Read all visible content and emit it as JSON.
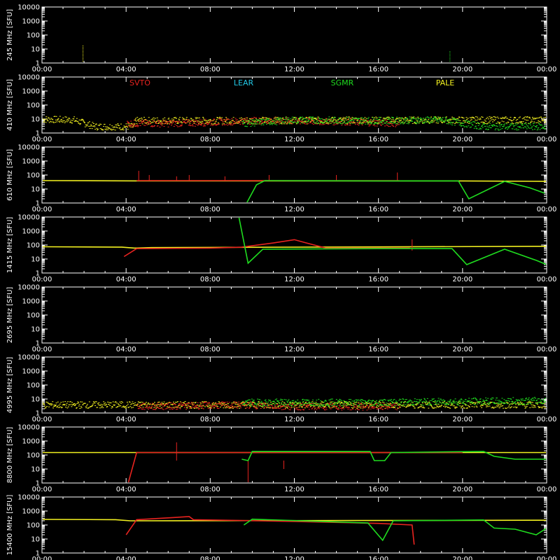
{
  "colors": {
    "background": "#000000",
    "axes": "#ffffff",
    "SVTO": "#e8231f",
    "LEAR": "#22c8e6",
    "SGMR": "#1fdc1f",
    "PALE": "#f2f020"
  },
  "chart_data": {
    "type": "line",
    "xlim": [
      "00:00",
      "24:00"
    ],
    "x_ticks": [
      "00:00",
      "04:00",
      "08:00",
      "12:00",
      "16:00",
      "20:00",
      "00:00"
    ],
    "y_scale": "log",
    "ylim": [
      1,
      10000
    ],
    "y_ticks": [
      "1",
      "10",
      "100",
      "1000",
      "10000"
    ],
    "legend": {
      "placement": "top of 410 MHz panel",
      "entries": [
        "SVTO",
        "LEAR",
        "SGMR",
        "PALE"
      ]
    },
    "panels": [
      {
        "ylabel": "245 MHz [SFU]",
        "series": [
          {
            "name": "PALE",
            "points": [
              [
                1.95,
                1
              ],
              [
                1.95,
                20
              ]
            ],
            "style": "spikes"
          },
          {
            "name": "SGMR",
            "points": [
              [
                19.4,
                1
              ],
              [
                19.4,
                8
              ]
            ],
            "style": "spikes"
          }
        ]
      },
      {
        "ylabel": "410 MHz [SFU]",
        "series": [
          {
            "name": "PALE",
            "points": [
              [
                0,
                10
              ],
              [
                1.5,
                9
              ],
              [
                2.5,
                3
              ],
              [
                4.4,
                3
              ],
              [
                4.4,
                8
              ],
              [
                24,
                9
              ]
            ],
            "style": "noisy"
          },
          {
            "name": "SVTO",
            "points": [
              [
                4,
                5
              ],
              [
                6,
                5
              ],
              [
                8,
                6
              ],
              [
                10,
                8
              ],
              [
                14,
                7
              ],
              [
                17,
                5
              ]
            ],
            "style": "noisy"
          },
          {
            "name": "SGMR",
            "points": [
              [
                9.5,
                5
              ],
              [
                12,
                9
              ],
              [
                16,
                8
              ],
              [
                19,
                9
              ],
              [
                21,
                3
              ],
              [
                24,
                3
              ]
            ],
            "style": "noisy"
          }
        ]
      },
      {
        "ylabel": "610 MHz [SFU]",
        "series": [
          {
            "name": "PALE",
            "points": [
              [
                0,
                40
              ],
              [
                4.5,
                38
              ],
              [
                4.5,
                38
              ],
              [
                16,
                38
              ],
              [
                19.5,
                38
              ],
              [
                24,
                35
              ]
            ]
          },
          {
            "name": "SVTO",
            "points": [
              [
                4.5,
                40
              ],
              [
                9,
                40
              ],
              [
                12,
                40
              ],
              [
                17,
                40
              ]
            ],
            "spikes": [
              [
                4.6,
                200
              ],
              [
                5.1,
                100
              ],
              [
                6.4,
                80
              ],
              [
                7.0,
                100
              ],
              [
                8.7,
                80
              ],
              [
                10.8,
                100
              ],
              [
                14.0,
                100
              ],
              [
                16.9,
                150
              ]
            ]
          },
          {
            "name": "SGMR",
            "points": [
              [
                9.7,
                0.8
              ],
              [
                10.2,
                20
              ],
              [
                10.6,
                40
              ],
              [
                16,
                38
              ],
              [
                19.8,
                38
              ],
              [
                20.3,
                2
              ],
              [
                22,
                35
              ],
              [
                23.2,
                12
              ],
              [
                23.9,
                5
              ]
            ]
          }
        ]
      },
      {
        "ylabel": "1415 MHz [SFU]",
        "series": [
          {
            "name": "PALE",
            "points": [
              [
                0,
                75
              ],
              [
                3.8,
                70
              ],
              [
                4.4,
                60
              ],
              [
                5.2,
                65
              ],
              [
                24,
                80
              ]
            ]
          },
          {
            "name": "SVTO",
            "points": [
              [
                3.9,
                15
              ],
              [
                4.5,
                55
              ],
              [
                8,
                60
              ],
              [
                9.5,
                70
              ],
              [
                11,
                140
              ],
              [
                12,
                240
              ],
              [
                12.5,
                150
              ],
              [
                13.5,
                60
              ],
              [
                17.5,
                60
              ]
            ],
            "spikes": [
              [
                17.6,
                250
              ]
            ]
          },
          {
            "name": "SGMR",
            "points": [
              [
                9.3,
                30000
              ],
              [
                9.8,
                5
              ],
              [
                10.5,
                50
              ],
              [
                16,
                55
              ],
              [
                19.5,
                55
              ],
              [
                20.2,
                4
              ],
              [
                22,
                50
              ],
              [
                23.5,
                8
              ],
              [
                24,
                4
              ]
            ]
          }
        ]
      },
      {
        "ylabel": "2695 MHz [SFU]",
        "series": [
          {
            "name": "PALE",
            "points": [
              [
                0,
                1
              ],
              [
                24,
                1
              ]
            ]
          },
          {
            "name": "SVTO",
            "points": [
              [
                4,
                1
              ],
              [
                9,
                1
              ]
            ]
          },
          {
            "name": "SGMR",
            "points": [
              [
                9.5,
                1
              ],
              [
                16,
                1
              ]
            ]
          }
        ]
      },
      {
        "ylabel": "4995 MHz [SFU]",
        "series": [
          {
            "name": "PALE",
            "points": [
              [
                0,
                4
              ],
              [
                24,
                4
              ]
            ],
            "style": "noisy"
          },
          {
            "name": "SVTO",
            "points": [
              [
                4.5,
                3
              ],
              [
                9.5,
                4
              ],
              [
                12,
                3
              ],
              [
                17,
                3
              ]
            ],
            "style": "noisy"
          },
          {
            "name": "SGMR",
            "points": [
              [
                9.5,
                6
              ],
              [
                16,
                6
              ],
              [
                20,
                7
              ],
              [
                24,
                8
              ]
            ],
            "style": "noisy"
          }
        ]
      },
      {
        "ylabel": "8800 MHz [SFU]",
        "series": [
          {
            "name": "PALE",
            "points": [
              [
                0,
                150
              ],
              [
                4.4,
                150
              ],
              [
                6.4,
                150
              ],
              [
                24,
                150
              ]
            ]
          },
          {
            "name": "SVTO",
            "points": [
              [
                4.1,
                1
              ],
              [
                4.5,
                150
              ],
              [
                6.4,
                150
              ],
              [
                9.5,
                150
              ],
              [
                16,
                150
              ],
              [
                20,
                150
              ]
            ],
            "spikes": [
              [
                6.4,
                800
              ],
              [
                9.8,
                0.8
              ],
              [
                11.5,
                10
              ]
            ]
          },
          {
            "name": "SGMR",
            "points": [
              [
                9.5,
                50
              ],
              [
                9.8,
                40
              ],
              [
                10.0,
                180
              ],
              [
                15.6,
                180
              ],
              [
                15.8,
                40
              ],
              [
                16.3,
                40
              ],
              [
                16.6,
                150
              ],
              [
                21,
                180
              ],
              [
                21.5,
                80
              ],
              [
                22.5,
                50
              ],
              [
                24,
                50
              ]
            ]
          }
        ]
      },
      {
        "ylabel": "15400 MHz [SFU]",
        "series": [
          {
            "name": "PALE",
            "points": [
              [
                0,
                250
              ],
              [
                3.5,
                240
              ],
              [
                4.2,
                200
              ],
              [
                24,
                220
              ]
            ]
          },
          {
            "name": "SVTO",
            "points": [
              [
                4.0,
                20
              ],
              [
                4.5,
                240
              ],
              [
                7.0,
                400
              ],
              [
                7.2,
                240
              ],
              [
                12,
                180
              ],
              [
                16,
                130
              ],
              [
                17.6,
                100
              ],
              [
                17.7,
                4
              ]
            ]
          },
          {
            "name": "SGMR",
            "points": [
              [
                9.6,
                100
              ],
              [
                10,
                260
              ],
              [
                15.5,
                140
              ],
              [
                16.2,
                8
              ],
              [
                16.7,
                200
              ],
              [
                21,
                230
              ],
              [
                21.5,
                60
              ],
              [
                22.5,
                50
              ],
              [
                23.5,
                20
              ],
              [
                24,
                60
              ]
            ]
          }
        ]
      }
    ]
  }
}
